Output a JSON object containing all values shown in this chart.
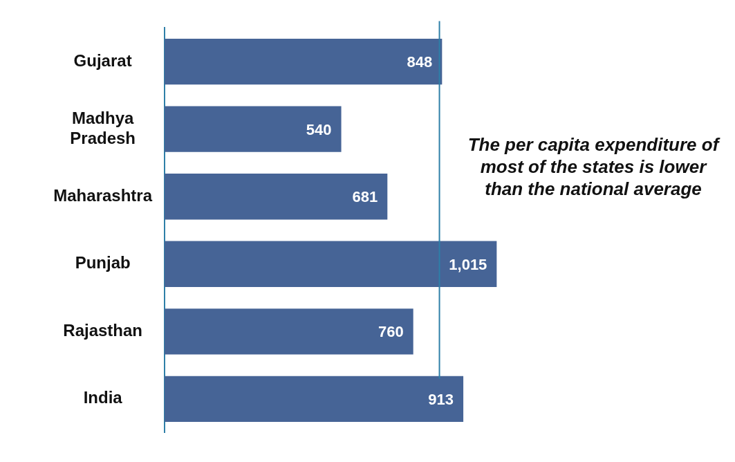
{
  "chart_data": {
    "type": "bar",
    "orientation": "horizontal",
    "categories": [
      "Gujarat",
      "Madhya Pradesh",
      "Maharashtra",
      "Punjab",
      "Rajasthan",
      "India"
    ],
    "values": [
      848,
      540,
      681,
      1015,
      760,
      913
    ],
    "value_labels": [
      "848",
      "540",
      "681",
      "1,015",
      "760",
      "913"
    ],
    "color": "#466496",
    "ref_lines": [
      {
        "axis": "x",
        "value": 840,
        "color": "#2e7fa8"
      }
    ],
    "annotations": [
      "The per capita expenditure of most of the states is lower than the national average"
    ],
    "legend": false
  }
}
